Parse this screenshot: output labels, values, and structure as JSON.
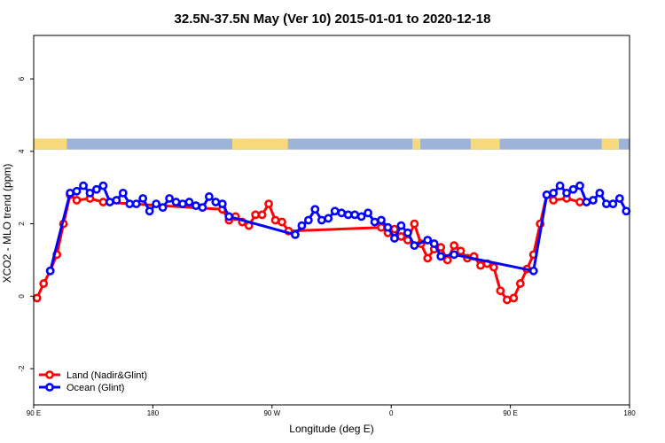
{
  "chart_data": {
    "type": "line",
    "title": "32.5N-37.5N May (Ver 10)   2015-01-01 to 2020-12-18",
    "xlabel": "Longitude (deg E)",
    "ylabel": "XCO2 - MLO trend (ppm)",
    "xlim": [
      90,
      540
    ],
    "ylim": [
      -3,
      7.2
    ],
    "x_ticks": [
      {
        "value": 90,
        "label": "90 E"
      },
      {
        "value": 180,
        "label": "180"
      },
      {
        "value": 270,
        "label": "90 W"
      },
      {
        "value": 360,
        "label": "0"
      },
      {
        "value": 450,
        "label": "90 E"
      },
      {
        "value": 540,
        "label": "180"
      }
    ],
    "y_ticks": [
      {
        "value": -2,
        "label": "-2"
      },
      {
        "value": 0,
        "label": "0"
      },
      {
        "value": 2,
        "label": "2"
      },
      {
        "value": 4,
        "label": "4"
      },
      {
        "value": 6,
        "label": "6"
      }
    ],
    "legend_position": "bottom-left",
    "land_ocean_strip": {
      "y_range": [
        4.05,
        4.35
      ],
      "land_color": "#f7d87a",
      "ocean_color": "#9db3d8",
      "land_ranges": [
        [
          90,
          115
        ],
        [
          240,
          282
        ],
        [
          376,
          382
        ],
        [
          420,
          442
        ],
        [
          519,
          532
        ]
      ]
    },
    "series": [
      {
        "name": "Land (Nadir&Glint)",
        "color": "#ff0000",
        "x": [
          92.5,
          97.5,
          102.5,
          107.5,
          112.5,
          117.5,
          122.5,
          132.5,
          142.5,
          232.5,
          237.5,
          242.5,
          247.5,
          252.5,
          257.5,
          262.5,
          267.5,
          272.5,
          277.5,
          282.5,
          352.5,
          357.5,
          362.5,
          367.5,
          372.5,
          377.5,
          382.5,
          387.5,
          392.5,
          397.5,
          402.5,
          407.5,
          412.5,
          417.5,
          422.5,
          427.5,
          432.5,
          437.5,
          442.5,
          447.5,
          452.5,
          457.5,
          462.5,
          467.5,
          472.5,
          477.5,
          482.5,
          492.5,
          502.5
        ],
        "y": [
          -0.05,
          0.35,
          0.7,
          1.15,
          2.0,
          2.8,
          2.65,
          2.7,
          2.6,
          2.4,
          2.1,
          2.2,
          2.05,
          1.95,
          2.25,
          2.25,
          2.55,
          2.1,
          2.05,
          1.8,
          1.9,
          1.75,
          1.85,
          1.65,
          1.55,
          2.0,
          1.45,
          1.05,
          1.3,
          1.35,
          1.0,
          1.4,
          1.25,
          1.05,
          1.1,
          0.85,
          0.9,
          0.8,
          0.15,
          -0.1,
          -0.05,
          0.35,
          0.75,
          1.15,
          2.0,
          2.8,
          2.65,
          2.7,
          2.6
        ]
      },
      {
        "name": "Ocean (Glint)",
        "color": "#0000ff",
        "x": [
          102.5,
          117.5,
          122.5,
          127.5,
          132.5,
          137.5,
          142.5,
          147.5,
          152.5,
          157.5,
          162.5,
          167.5,
          172.5,
          177.5,
          182.5,
          187.5,
          192.5,
          197.5,
          202.5,
          207.5,
          212.5,
          217.5,
          222.5,
          227.5,
          232.5,
          237.5,
          287.5,
          292.5,
          297.5,
          302.5,
          307.5,
          312.5,
          317.5,
          322.5,
          327.5,
          332.5,
          337.5,
          342.5,
          347.5,
          352.5,
          357.5,
          362.5,
          367.5,
          372.5,
          377.5,
          387.5,
          392.5,
          397.5,
          407.5,
          467.5,
          477.5,
          482.5,
          487.5,
          492.5,
          497.5,
          502.5,
          507.5,
          512.5,
          517.5,
          522.5,
          527.5,
          532.5,
          537.5
        ],
        "y": [
          0.7,
          2.85,
          2.9,
          3.05,
          2.85,
          2.95,
          3.05,
          2.6,
          2.65,
          2.85,
          2.55,
          2.55,
          2.7,
          2.35,
          2.55,
          2.45,
          2.7,
          2.6,
          2.55,
          2.6,
          2.5,
          2.45,
          2.75,
          2.6,
          2.55,
          2.2,
          1.7,
          1.95,
          2.1,
          2.4,
          2.1,
          2.15,
          2.35,
          2.3,
          2.25,
          2.25,
          2.2,
          2.3,
          2.05,
          2.1,
          1.9,
          1.6,
          1.95,
          1.75,
          1.4,
          1.55,
          1.45,
          1.1,
          1.15,
          0.7,
          2.8,
          2.85,
          3.05,
          2.85,
          2.95,
          3.05,
          2.6,
          2.65,
          2.85,
          2.55,
          2.55,
          2.7,
          2.35
        ]
      }
    ]
  }
}
